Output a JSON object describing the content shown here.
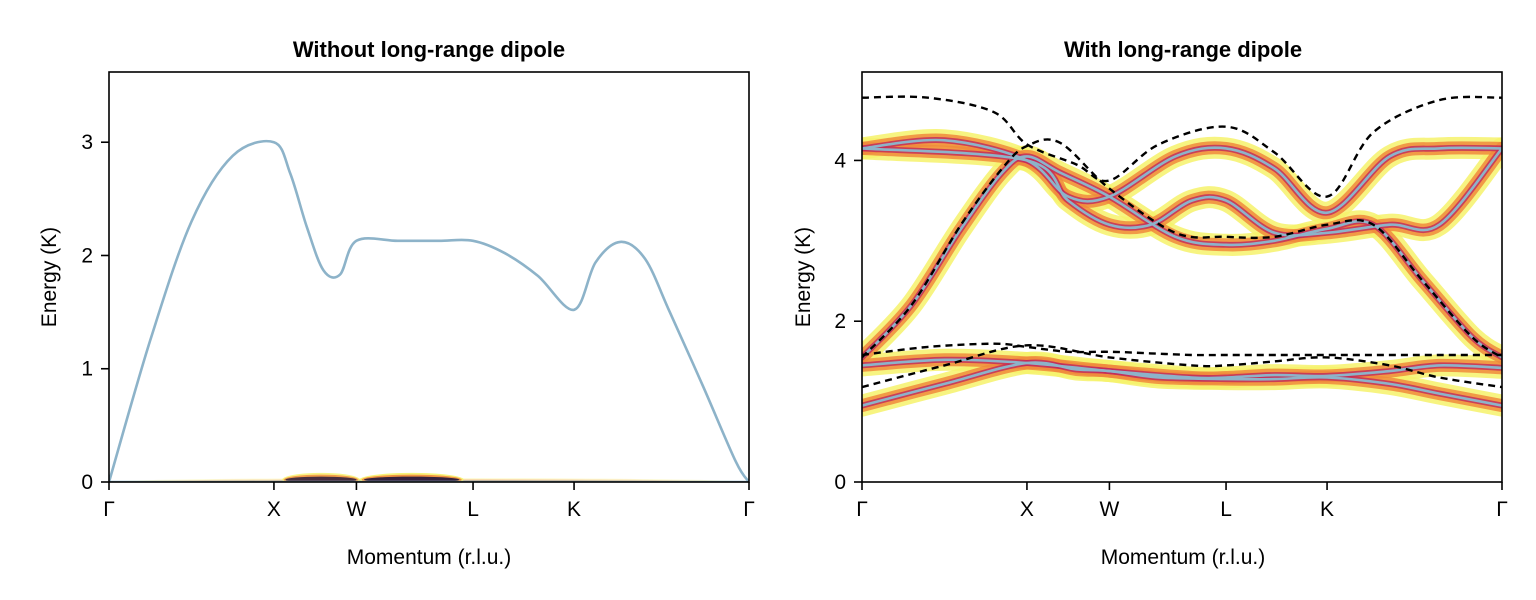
{
  "chart_data": [
    {
      "type": "line",
      "title": "Without long-range dipole",
      "xlabel": "Momentum (r.l.u.)",
      "ylabel": "Energy (K)",
      "xticks": [
        {
          "label": "Γ",
          "x": 0
        },
        {
          "label": "X",
          "x": 1
        },
        {
          "label": "W",
          "x": 1.5
        },
        {
          "label": "L",
          "x": 2.2071
        },
        {
          "label": "K",
          "x": 2.8195
        },
        {
          "label": "Γ",
          "x": 3.8801
        }
      ],
      "xlim": [
        0,
        3.8801
      ],
      "ylim": [
        0,
        3.62
      ],
      "yticks": [
        0,
        1,
        2,
        3
      ],
      "grid": false,
      "colors": {
        "band": "#8db3c9",
        "heat_low": "#f6f26b",
        "heat_mid": "#f08a3c",
        "heat_high": "#2a1a3c"
      },
      "series": [
        {
          "role": "band",
          "x": [
            0,
            0.25,
            0.5,
            0.75,
            1.0,
            1.1,
            1.2,
            1.3,
            1.4,
            1.5,
            1.75,
            2.0,
            2.2071,
            2.4,
            2.6,
            2.8195,
            2.95,
            3.1,
            3.25,
            3.4,
            3.6,
            3.8,
            3.8801
          ],
          "y": [
            0,
            1.25,
            2.3,
            2.88,
            3.0,
            2.72,
            2.25,
            1.87,
            1.83,
            2.13,
            2.13,
            2.13,
            2.13,
            2.02,
            1.82,
            1.52,
            1.94,
            2.12,
            1.97,
            1.5,
            0.85,
            0.18,
            0
          ]
        },
        {
          "role": "band",
          "x": [
            0,
            3.8801
          ],
          "y": [
            0,
            0
          ]
        }
      ],
      "intensity": [
        {
          "x0": 0.02,
          "x1": 3.86,
          "y": 0.0,
          "width": 0.02,
          "weight": 0.3
        },
        {
          "x0": 1.05,
          "x1": 1.52,
          "y": 0.02,
          "width": 0.04,
          "weight": 0.9
        },
        {
          "x0": 1.52,
          "x1": 2.15,
          "y": 0.02,
          "width": 0.04,
          "weight": 1.0
        }
      ]
    },
    {
      "type": "line",
      "title": "With long-range dipole",
      "xlabel": "Momentum (r.l.u.)",
      "ylabel": "Energy (K)",
      "xticks": [
        {
          "label": "Γ",
          "x": 0
        },
        {
          "label": "X",
          "x": 1
        },
        {
          "label": "W",
          "x": 1.5
        },
        {
          "label": "L",
          "x": 2.2071
        },
        {
          "label": "K",
          "x": 2.8195
        },
        {
          "label": "Γ",
          "x": 3.8801
        }
      ],
      "xlim": [
        0,
        3.8801
      ],
      "ylim": [
        0,
        5.1
      ],
      "yticks": [
        0,
        2,
        4
      ],
      "grid": false,
      "colors": {
        "band": "#8db3c9",
        "dashed": "#000000",
        "heat_low": "#f6f26b",
        "heat_mid": "#f08a3c",
        "heat_high": "#c2285a"
      },
      "series": [
        {
          "role": "band",
          "x": [
            0,
            0.5,
            1.0,
            1.25,
            1.5,
            1.9,
            2.2071,
            2.5,
            2.8195,
            3.2,
            3.5,
            3.8801
          ],
          "y": [
            4.15,
            4.25,
            4.0,
            3.55,
            3.55,
            4.05,
            4.15,
            3.9,
            3.35,
            4.05,
            4.15,
            4.15
          ]
        },
        {
          "role": "band",
          "x": [
            0,
            0.3,
            0.6,
            0.85,
            1.0,
            1.2,
            1.5,
            1.9,
            2.2071,
            2.5,
            2.8195,
            3.1,
            3.4,
            3.7,
            3.8801
          ],
          "y": [
            1.55,
            2.2,
            3.15,
            3.85,
            4.05,
            3.85,
            3.55,
            3.05,
            2.95,
            3.0,
            3.15,
            3.2,
            2.5,
            1.8,
            1.55
          ]
        },
        {
          "role": "band",
          "x": [
            0,
            1.0,
            1.25,
            1.5,
            1.75,
            2.0,
            2.2071,
            2.5,
            2.8195,
            3.2,
            3.5,
            3.8801
          ],
          "y": [
            4.15,
            4.0,
            3.5,
            3.2,
            3.2,
            3.5,
            3.5,
            3.1,
            3.1,
            3.2,
            3.2,
            4.15
          ]
        },
        {
          "role": "band",
          "x": [
            0,
            0.5,
            1.0,
            1.5,
            2.0,
            2.2071,
            2.5,
            2.8195,
            3.2,
            3.5,
            3.8801
          ],
          "y": [
            1.45,
            1.52,
            1.48,
            1.38,
            1.3,
            1.3,
            1.33,
            1.32,
            1.38,
            1.45,
            1.42
          ]
        },
        {
          "role": "band",
          "x": [
            0,
            0.5,
            1.0,
            1.3,
            1.5,
            1.8,
            2.2071,
            2.5,
            2.8195,
            3.2,
            3.5,
            3.8801
          ],
          "y": [
            0.95,
            1.22,
            1.48,
            1.4,
            1.38,
            1.3,
            1.28,
            1.28,
            1.3,
            1.22,
            1.1,
            0.95
          ]
        },
        {
          "role": "dashed",
          "x": [
            0,
            0.4,
            0.8,
            1.0,
            1.3,
            1.5,
            1.8,
            2.2071,
            2.5,
            2.8195,
            3.1,
            3.5,
            3.8801
          ],
          "y": [
            4.78,
            4.78,
            4.6,
            4.2,
            3.95,
            3.75,
            4.2,
            4.42,
            4.1,
            3.55,
            4.35,
            4.75,
            4.78
          ]
        },
        {
          "role": "dashed",
          "x": [
            0,
            0.3,
            0.6,
            0.85,
            1.0,
            1.2,
            1.5,
            1.9,
            2.2071,
            2.5,
            2.8195,
            3.1,
            3.4,
            3.7,
            3.8801
          ],
          "y": [
            1.55,
            2.2,
            3.2,
            3.9,
            4.18,
            4.22,
            3.65,
            3.1,
            3.05,
            3.05,
            3.2,
            3.2,
            2.5,
            1.8,
            1.55
          ]
        },
        {
          "role": "dashed",
          "x": [
            0,
            0.4,
            0.8,
            1.0,
            1.25,
            1.5,
            1.75,
            2.0,
            2.2071,
            2.5,
            2.8195,
            3.2,
            3.5,
            3.8801
          ],
          "y": [
            1.58,
            1.68,
            1.72,
            1.68,
            1.62,
            1.62,
            1.6,
            1.58,
            1.58,
            1.58,
            1.58,
            1.58,
            1.58,
            1.58
          ]
        },
        {
          "role": "dashed",
          "x": [
            0,
            0.5,
            1.0,
            1.5,
            2.0,
            2.2071,
            2.5,
            2.8195,
            3.2,
            3.5,
            3.8801
          ],
          "y": [
            1.18,
            1.45,
            1.7,
            1.55,
            1.45,
            1.45,
            1.5,
            1.55,
            1.45,
            1.3,
            1.18
          ]
        }
      ]
    }
  ]
}
